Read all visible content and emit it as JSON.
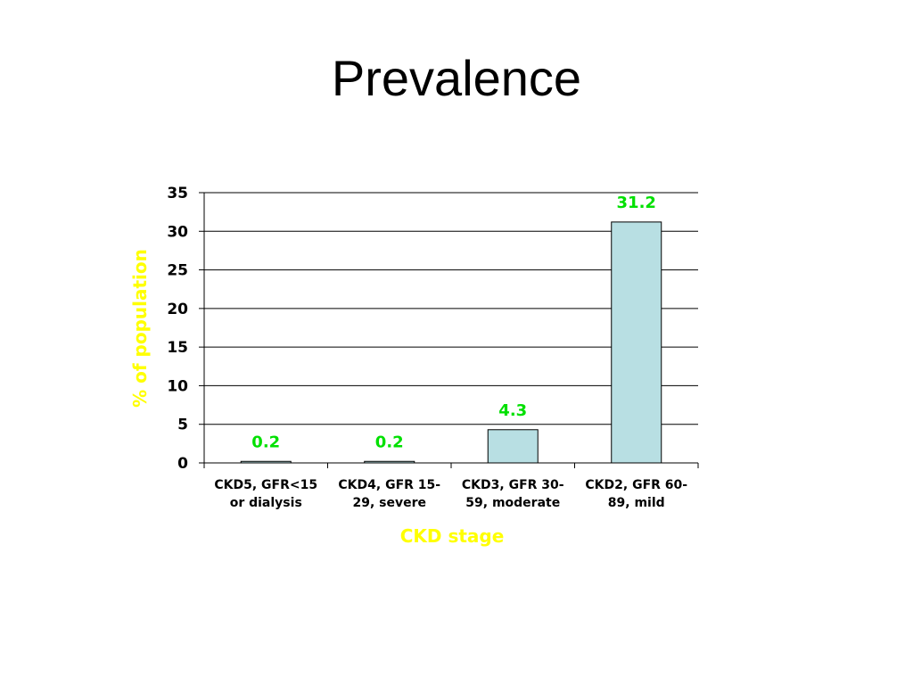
{
  "slide": {
    "title": "Prevalence"
  },
  "chart_data": {
    "type": "bar",
    "categories": [
      [
        "CKD5, GFR<15",
        "or dialysis"
      ],
      [
        "CKD4, GFR 15-",
        "29, severe"
      ],
      [
        "CKD3, GFR 30-",
        "59, moderate"
      ],
      [
        "CKD2, GFR 60-",
        "89, mild"
      ]
    ],
    "values": [
      0.2,
      0.2,
      4.3,
      31.2
    ],
    "data_labels": [
      "0.2",
      "0.2",
      "4.3",
      "31.2"
    ],
    "title": "",
    "xlabel": "CKD stage",
    "ylabel": "% of population",
    "ylim": [
      0,
      35
    ],
    "yticks": [
      0,
      5,
      10,
      15,
      20,
      25,
      30,
      35
    ],
    "grid": true,
    "legend": "none",
    "colors": {
      "bar_fill": "#b8dfe3",
      "bar_stroke": "#000000",
      "data_label": "#00e000",
      "axis_title": "#ffff00",
      "gridline": "#000000"
    }
  }
}
